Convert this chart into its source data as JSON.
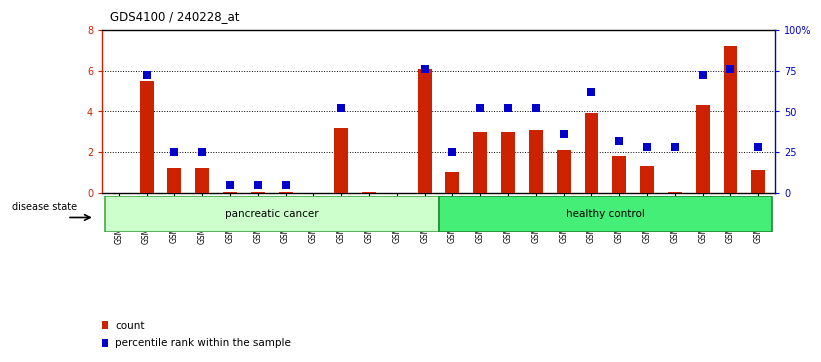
{
  "title": "GDS4100 / 240228_at",
  "samples": [
    "GSM356796",
    "GSM356797",
    "GSM356798",
    "GSM356799",
    "GSM356800",
    "GSM356801",
    "GSM356802",
    "GSM356803",
    "GSM356804",
    "GSM356805",
    "GSM356806",
    "GSM356807",
    "GSM356808",
    "GSM356809",
    "GSM356810",
    "GSM356811",
    "GSM356812",
    "GSM356813",
    "GSM356814",
    "GSM356815",
    "GSM356816",
    "GSM356817",
    "GSM356818",
    "GSM356819"
  ],
  "counts": [
    0.0,
    5.5,
    1.2,
    1.2,
    0.05,
    0.05,
    0.05,
    0.0,
    3.2,
    0.05,
    0.0,
    6.1,
    1.0,
    3.0,
    3.0,
    3.1,
    2.1,
    3.9,
    1.8,
    1.3,
    0.05,
    4.3,
    7.2,
    1.1
  ],
  "percentiles": [
    null,
    72,
    25,
    25,
    5,
    5,
    5,
    null,
    52,
    null,
    null,
    76,
    25,
    52,
    52,
    52,
    36,
    62,
    32,
    28,
    28,
    72,
    76,
    28
  ],
  "groups": [
    "pancreatic cancer",
    "pancreatic cancer",
    "pancreatic cancer",
    "pancreatic cancer",
    "pancreatic cancer",
    "pancreatic cancer",
    "pancreatic cancer",
    "pancreatic cancer",
    "pancreatic cancer",
    "pancreatic cancer",
    "pancreatic cancer",
    "pancreatic cancer",
    "healthy control",
    "healthy control",
    "healthy control",
    "healthy control",
    "healthy control",
    "healthy control",
    "healthy control",
    "healthy control",
    "healthy control",
    "healthy control",
    "healthy control",
    "healthy control"
  ],
  "group_fill": {
    "pancreatic cancer": "#CCFFCC",
    "healthy control": "#44EE77"
  },
  "group_edge": {
    "pancreatic cancer": "#44AA44",
    "healthy control": "#228833"
  },
  "bar_color": "#CC2200",
  "dot_color": "#0000CC",
  "ylim_left": [
    0,
    8
  ],
  "ylim_right": [
    0,
    100
  ],
  "yticks_left": [
    0,
    2,
    4,
    6,
    8
  ],
  "yticks_right": [
    0,
    25,
    50,
    75,
    100
  ],
  "ytick_labels_right": [
    "0",
    "25",
    "50",
    "75",
    "100%"
  ],
  "label_count": "count",
  "label_pct": "percentile rank within the sample",
  "disease_state_label": "disease state"
}
